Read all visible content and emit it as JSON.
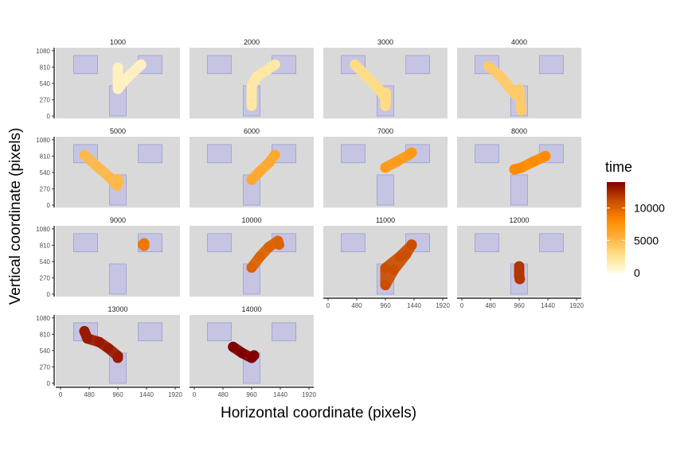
{
  "chart_data": {
    "type": "scatter",
    "xlabel": "Horizontal coordinate (pixels)",
    "ylabel": "Vertical coordinate (pixels)",
    "xlim": [
      -80,
      2000
    ],
    "ylim": [
      -40,
      1130
    ],
    "x_ticks": [
      "0",
      "480",
      "960",
      "1440",
      "1920"
    ],
    "y_ticks": [
      "0",
      "270",
      "540",
      "810",
      "1080"
    ],
    "x_tick_values": [
      0,
      480,
      960,
      1440,
      1920
    ],
    "y_tick_values": [
      0,
      270,
      540,
      810,
      1080
    ],
    "areas_of_interest": [
      {
        "name": "left",
        "x0": 220,
        "x1": 620,
        "y0": 700,
        "y1": 1000
      },
      {
        "name": "right",
        "x0": 1300,
        "x1": 1700,
        "y0": 700,
        "y1": 1000
      },
      {
        "name": "bottom",
        "x0": 820,
        "x1": 1100,
        "y0": 0,
        "y1": 500
      }
    ],
    "color_scale": {
      "title": "time",
      "min": 0,
      "max": 14000,
      "labels": [
        "0",
        "5000",
        "10000"
      ],
      "label_values": [
        0,
        5000,
        10000
      ],
      "low_color": "#fffbe0",
      "mid_color": "#ff8c00",
      "high_color": "#7f0000"
    },
    "panels": [
      {
        "label": "1000",
        "time": 1000,
        "show_x_axis": false,
        "show_y_axis": true,
        "path": [
          [
            960,
            800
          ],
          [
            960,
            550
          ],
          [
            960,
            450
          ],
          [
            1100,
            620
          ],
          [
            1350,
            850
          ]
        ]
      },
      {
        "label": "2000",
        "time": 2000,
        "show_x_axis": false,
        "show_y_axis": false,
        "path": [
          [
            1350,
            850
          ],
          [
            1050,
            650
          ],
          [
            960,
            500
          ],
          [
            960,
            350
          ],
          [
            960,
            170
          ]
        ]
      },
      {
        "label": "3000",
        "time": 3000,
        "show_x_axis": false,
        "show_y_axis": false,
        "path": [
          [
            450,
            850
          ],
          [
            650,
            650
          ],
          [
            850,
            450
          ],
          [
            960,
            300
          ],
          [
            960,
            170
          ],
          [
            970,
            380
          ]
        ]
      },
      {
        "label": "4000",
        "time": 4000,
        "show_x_axis": false,
        "show_y_axis": false,
        "path": [
          [
            450,
            820
          ],
          [
            650,
            650
          ],
          [
            900,
            350
          ],
          [
            960,
            440
          ],
          [
            1000,
            90
          ]
        ]
      },
      {
        "label": "5000",
        "time": 5000,
        "show_x_axis": false,
        "show_y_axis": true,
        "path": [
          [
            400,
            830
          ],
          [
            600,
            650
          ],
          [
            800,
            480
          ],
          [
            950,
            320
          ],
          [
            960,
            430
          ],
          [
            970,
            380
          ]
        ]
      },
      {
        "label": "6000",
        "time": 6000,
        "show_x_axis": false,
        "show_y_axis": false,
        "path": [
          [
            960,
            420
          ],
          [
            1100,
            560
          ],
          [
            1250,
            700
          ],
          [
            1350,
            830
          ]
        ]
      },
      {
        "label": "7000",
        "time": 7000,
        "show_x_axis": false,
        "show_y_axis": false,
        "path": [
          [
            960,
            620
          ],
          [
            1150,
            720
          ],
          [
            1350,
            830
          ],
          [
            1400,
            870
          ]
        ]
      },
      {
        "label": "8000",
        "time": 8000,
        "show_x_axis": false,
        "show_y_axis": false,
        "path": [
          [
            880,
            590
          ],
          [
            1000,
            620
          ],
          [
            1200,
            720
          ],
          [
            1400,
            810
          ]
        ]
      },
      {
        "label": "9000",
        "time": 9000,
        "show_x_axis": false,
        "show_y_axis": true,
        "path": [
          [
            1400,
            840
          ],
          [
            1380,
            820
          ],
          [
            1400,
            800
          ]
        ]
      },
      {
        "label": "10000",
        "time": 10000,
        "show_x_axis": false,
        "show_y_axis": false,
        "path": [
          [
            960,
            440
          ],
          [
            1100,
            620
          ],
          [
            1250,
            780
          ],
          [
            1400,
            880
          ],
          [
            1420,
            820
          ]
        ]
      },
      {
        "label": "11000",
        "time": 11000,
        "show_x_axis": true,
        "show_y_axis": false,
        "path": [
          [
            1400,
            810
          ],
          [
            1200,
            620
          ],
          [
            960,
            430
          ],
          [
            960,
            150
          ],
          [
            1100,
            400
          ],
          [
            1300,
            650
          ],
          [
            1400,
            820
          ]
        ]
      },
      {
        "label": "12000",
        "time": 12000,
        "show_x_axis": true,
        "show_y_axis": false,
        "path": [
          [
            960,
            460
          ],
          [
            960,
            380
          ],
          [
            960,
            300
          ],
          [
            970,
            250
          ]
        ]
      },
      {
        "label": "13000",
        "time": 13000,
        "show_x_axis": true,
        "show_y_axis": true,
        "path": [
          [
            400,
            860
          ],
          [
            450,
            740
          ],
          [
            650,
            680
          ],
          [
            800,
            580
          ],
          [
            960,
            450
          ],
          [
            960,
            420
          ]
        ]
      },
      {
        "label": "14000",
        "time": 14000,
        "show_x_axis": true,
        "show_y_axis": false,
        "path": [
          [
            650,
            600
          ],
          [
            800,
            500
          ],
          [
            960,
            420
          ],
          [
            1000,
            460
          ]
        ]
      }
    ]
  }
}
